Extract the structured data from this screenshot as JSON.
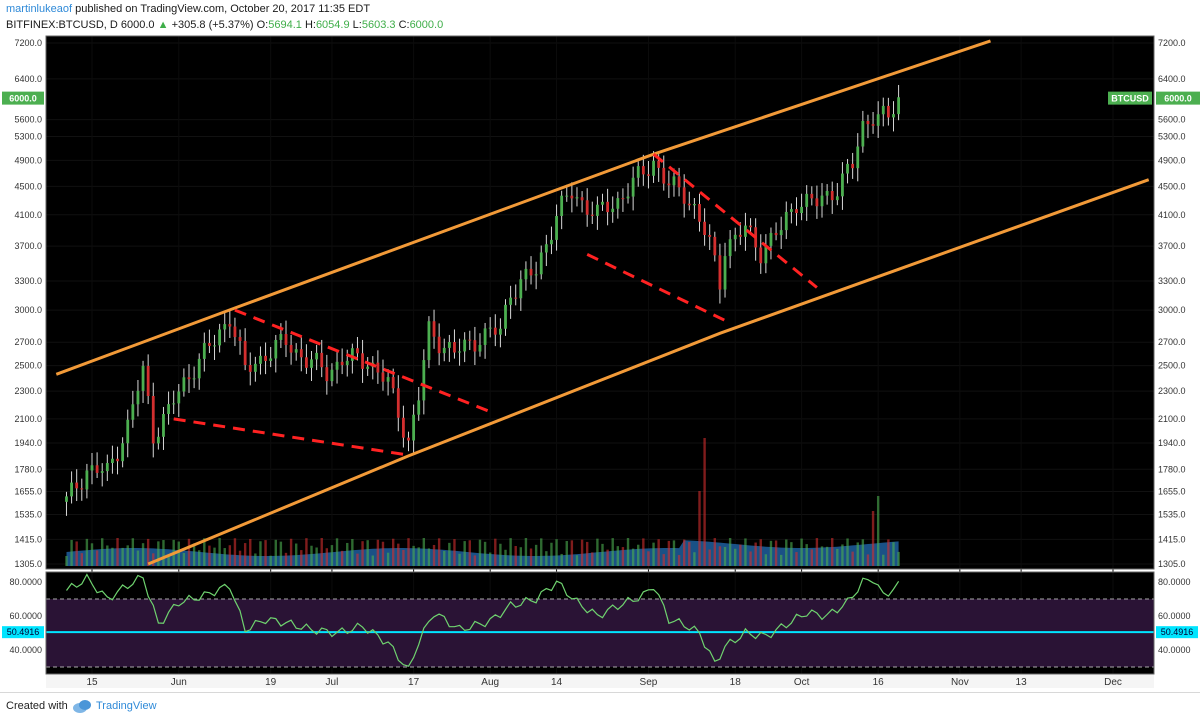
{
  "header": {
    "author": "martinlukeaof",
    "published_text": "published on TradingView.com, October 20, 2017 11:35 EDT",
    "symbol": "BITFINEX:BTCUSD, D",
    "last": "6000.0",
    "change_arrow": "▲",
    "change": "+305.8 (+5.37%)",
    "o_label": "O:",
    "o_value": "5694.1",
    "h_label": "H:",
    "h_value": "6054.9",
    "l_label": "L:",
    "l_value": "5603.3",
    "c_label": "C:",
    "c_value": "6000.0"
  },
  "footer": {
    "created_with": "Created with",
    "brand": "TradingView"
  },
  "colors": {
    "background": "#000000",
    "up_candle": "#4caf50",
    "down_candle": "#d32f2f",
    "channel": "#f29a38",
    "wedge": "#ff2222",
    "rsi_line": "#6fd36f",
    "rsi_band": "#2a1335",
    "rsi_mid": "#00e5ff",
    "volume_ma": "#1f5f9e",
    "axis_text": "#cfcfcf"
  },
  "chart_data": {
    "type": "candlestick",
    "symbol": "BITFINEX:BTCUSD",
    "interval": "D",
    "y_scale": "log",
    "ylim": [
      1305,
      7200
    ],
    "y_ticks": [
      "7200.0",
      "6400.0",
      "5600.0",
      "5300.0",
      "4900.0",
      "4500.0",
      "4100.0",
      "3700.0",
      "3300.0",
      "3000.0",
      "2700.0",
      "2500.0",
      "2300.0",
      "2100.0",
      "1940.0",
      "1780.0",
      "1655.0",
      "1535.0",
      "1415.0",
      "1305.0"
    ],
    "x_ticks": [
      "15",
      "Jun",
      "19",
      "Jul",
      "17",
      "Aug",
      "14",
      "Sep",
      "18",
      "Oct",
      "16",
      "Nov",
      "13",
      "Dec"
    ],
    "x_tick_dates": [
      "2017-05-15",
      "2017-06-01",
      "2017-06-19",
      "2017-07-01",
      "2017-07-17",
      "2017-08-01",
      "2017-08-14",
      "2017-09-01",
      "2017-09-18",
      "2017-10-01",
      "2017-10-16",
      "2017-11-01",
      "2017-11-13",
      "2017-12-01"
    ],
    "last_price_label": "6000.0",
    "series_label": "BTCUSD",
    "price_path": [
      [
        "2017-05-10",
        1600
      ],
      [
        "2017-05-14",
        1780
      ],
      [
        "2017-05-18",
        1760
      ],
      [
        "2017-05-22",
        2050
      ],
      [
        "2017-05-25",
        2450
      ],
      [
        "2017-05-27",
        2000
      ],
      [
        "2017-05-30",
        2150
      ],
      [
        "2017-06-04",
        2500
      ],
      [
        "2017-06-08",
        2700
      ],
      [
        "2017-06-11",
        2950
      ],
      [
        "2017-06-14",
        2450
      ],
      [
        "2017-06-18",
        2600
      ],
      [
        "2017-06-22",
        2700
      ],
      [
        "2017-06-26",
        2550
      ],
      [
        "2017-06-30",
        2450
      ],
      [
        "2017-07-03",
        2550
      ],
      [
        "2017-07-08",
        2550
      ],
      [
        "2017-07-12",
        2350
      ],
      [
        "2017-07-16",
        1950
      ],
      [
        "2017-07-18",
        2250
      ],
      [
        "2017-07-20",
        2800
      ],
      [
        "2017-07-25",
        2600
      ],
      [
        "2017-07-30",
        2750
      ],
      [
        "2017-08-03",
        2800
      ],
      [
        "2017-08-05",
        3200
      ],
      [
        "2017-08-10",
        3400
      ],
      [
        "2017-08-14",
        4100
      ],
      [
        "2017-08-17",
        4400
      ],
      [
        "2017-08-22",
        4100
      ],
      [
        "2017-08-26",
        4300
      ],
      [
        "2017-08-31",
        4700
      ],
      [
        "2017-09-02",
        4900
      ],
      [
        "2017-09-05",
        4500
      ],
      [
        "2017-09-08",
        4400
      ],
      [
        "2017-09-10",
        4200
      ],
      [
        "2017-09-13",
        3700
      ],
      [
        "2017-09-15",
        3300
      ],
      [
        "2017-09-16",
        3700
      ],
      [
        "2017-09-20",
        3900
      ],
      [
        "2017-09-23",
        3650
      ],
      [
        "2017-09-27",
        3900
      ],
      [
        "2017-09-30",
        4300
      ],
      [
        "2017-10-04",
        4250
      ],
      [
        "2017-10-08",
        4500
      ],
      [
        "2017-10-11",
        4800
      ],
      [
        "2017-10-13",
        5500
      ],
      [
        "2017-10-15",
        5700
      ],
      [
        "2017-10-18",
        5600
      ],
      [
        "2017-10-20",
        6000
      ]
    ],
    "volume_axis": "shares price pane",
    "rsi": {
      "upper_band": 70,
      "lower_band": 30,
      "mid_label": "50.4916",
      "y_ticks": [
        "80.0000",
        "60.0000",
        "40.0000"
      ],
      "path": [
        [
          "2017-05-10",
          75
        ],
        [
          "2017-05-14",
          82
        ],
        [
          "2017-05-18",
          70
        ],
        [
          "2017-05-22",
          78
        ],
        [
          "2017-05-25",
          83
        ],
        [
          "2017-05-28",
          55
        ],
        [
          "2017-06-01",
          68
        ],
        [
          "2017-06-06",
          72
        ],
        [
          "2017-06-11",
          78
        ],
        [
          "2017-06-14",
          52
        ],
        [
          "2017-06-18",
          58
        ],
        [
          "2017-06-22",
          56
        ],
        [
          "2017-06-27",
          52
        ],
        [
          "2017-07-02",
          50
        ],
        [
          "2017-07-07",
          54
        ],
        [
          "2017-07-12",
          44
        ],
        [
          "2017-07-16",
          28
        ],
        [
          "2017-07-18",
          45
        ],
        [
          "2017-07-21",
          62
        ],
        [
          "2017-07-26",
          52
        ],
        [
          "2017-08-01",
          57
        ],
        [
          "2017-08-05",
          66
        ],
        [
          "2017-08-10",
          70
        ],
        [
          "2017-08-14",
          80
        ],
        [
          "2017-08-18",
          68
        ],
        [
          "2017-08-22",
          60
        ],
        [
          "2017-08-26",
          66
        ],
        [
          "2017-08-31",
          72
        ],
        [
          "2017-09-02",
          78
        ],
        [
          "2017-09-05",
          58
        ],
        [
          "2017-09-08",
          55
        ],
        [
          "2017-09-11",
          50
        ],
        [
          "2017-09-14",
          32
        ],
        [
          "2017-09-16",
          42
        ],
        [
          "2017-09-20",
          50
        ],
        [
          "2017-09-24",
          48
        ],
        [
          "2017-09-28",
          55
        ],
        [
          "2017-10-02",
          62
        ],
        [
          "2017-10-06",
          60
        ],
        [
          "2017-10-10",
          68
        ],
        [
          "2017-10-13",
          80
        ],
        [
          "2017-10-15",
          82
        ],
        [
          "2017-10-17",
          72
        ],
        [
          "2017-10-20",
          78
        ]
      ]
    },
    "annotations": {
      "channel_upper": [
        [
          "2017-05-08",
          2430
        ],
        [
          "2017-06-12",
          3020
        ],
        [
          "2017-09-02",
          5000
        ],
        [
          "2017-11-07",
          7250
        ]
      ],
      "channel_lower": [
        [
          "2017-05-26",
          1305
        ],
        [
          "2017-07-16",
          1860
        ],
        [
          "2017-09-15",
          2780
        ],
        [
          "2017-12-08",
          4600
        ]
      ],
      "wedge_1_upper": [
        [
          "2017-06-12",
          3000
        ],
        [
          "2017-08-01",
          2150
        ]
      ],
      "wedge_1_lower": [
        [
          "2017-05-31",
          2100
        ],
        [
          "2017-07-16",
          1865
        ]
      ],
      "wedge_2_upper": [
        [
          "2017-09-02",
          5000
        ],
        [
          "2017-10-04",
          3230
        ]
      ],
      "wedge_2_lower": [
        [
          "2017-08-20",
          3600
        ],
        [
          "2017-09-16",
          2900
        ]
      ]
    }
  }
}
